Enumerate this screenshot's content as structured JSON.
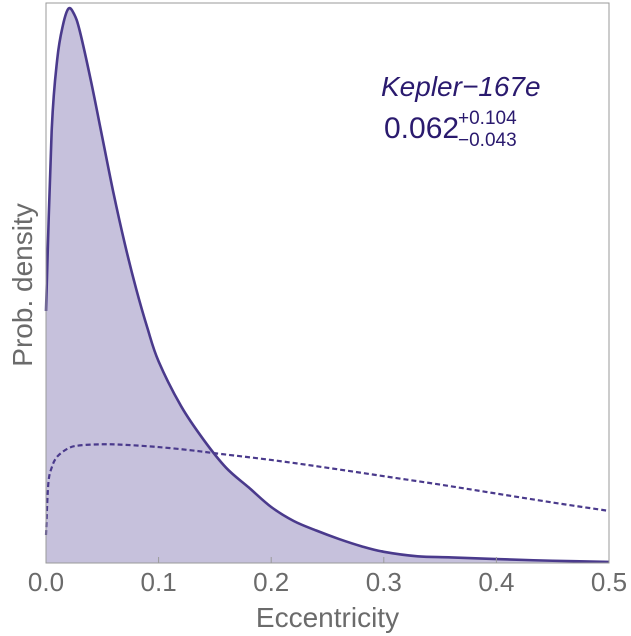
{
  "chart_data": {
    "type": "area",
    "xlabel": "Eccentricity",
    "ylabel": "Prob. density",
    "xlim": [
      0,
      0.5
    ],
    "ylim": [
      0,
      1.0
    ],
    "x_ticks": [
      "0.0",
      "0.1",
      "0.2",
      "0.3",
      "0.4",
      "0.5"
    ],
    "x_tick_values": [
      0,
      0.1,
      0.2,
      0.3,
      0.4,
      0.5
    ],
    "grid": false,
    "annotation": {
      "name": "Kepler−167e",
      "value": "0.062",
      "upper": "+0.104",
      "lower": "−0.043"
    },
    "colors": {
      "fill": "#c6c1dc",
      "line": "#4a3a8c",
      "annotation": "#2a1a6e"
    },
    "series": [
      {
        "style": "solid-filled",
        "x": [
          0.0,
          0.005,
          0.01,
          0.015,
          0.02,
          0.025,
          0.03,
          0.04,
          0.05,
          0.06,
          0.07,
          0.08,
          0.09,
          0.1,
          0.12,
          0.14,
          0.16,
          0.18,
          0.2,
          0.22,
          0.24,
          0.26,
          0.28,
          0.3,
          0.33,
          0.36,
          0.4,
          0.45,
          0.5
        ],
        "y": [
          0.45,
          0.77,
          0.9,
          0.96,
          0.99,
          0.98,
          0.95,
          0.86,
          0.76,
          0.66,
          0.57,
          0.49,
          0.42,
          0.36,
          0.28,
          0.22,
          0.17,
          0.135,
          0.1,
          0.075,
          0.058,
          0.043,
          0.03,
          0.02,
          0.012,
          0.01,
          0.007,
          0.004,
          0.002
        ]
      },
      {
        "style": "dashed",
        "x": [
          0.0,
          0.002,
          0.005,
          0.01,
          0.02,
          0.03,
          0.05,
          0.07,
          0.1,
          0.13,
          0.15,
          0.2,
          0.25,
          0.3,
          0.35,
          0.4,
          0.45,
          0.5
        ],
        "y": [
          0.05,
          0.14,
          0.17,
          0.19,
          0.205,
          0.21,
          0.212,
          0.211,
          0.207,
          0.201,
          0.196,
          0.184,
          0.17,
          0.155,
          0.14,
          0.124,
          0.108,
          0.093
        ]
      }
    ]
  }
}
